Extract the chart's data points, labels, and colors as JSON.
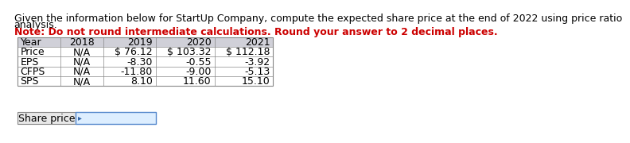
{
  "title_line1": "Given the information below for StartUp Company, compute the expected share price at the end of 2022 using price ratio",
  "title_line2": "analysis.",
  "note": "Note: Do not round intermediate calculations. Round your answer to 2 decimal places.",
  "table_header": [
    "Year",
    "2018",
    "2019",
    "2020",
    "2021"
  ],
  "table_rows": [
    [
      "Price",
      "N/A",
      "$ 76.12",
      "$ 103.32",
      "$ 112.18"
    ],
    [
      "EPS",
      "N/A",
      "-8.30",
      "-0.55",
      "-3.92"
    ],
    [
      "CFPS",
      "N/A",
      "-11.80",
      "-9.00",
      "-5.13"
    ],
    [
      "SPS",
      "N/A",
      "8.10",
      "11.60",
      "15.10"
    ]
  ],
  "input_label": "Share price",
  "bg_color": "#ffffff",
  "header_bg": "#d0d0d8",
  "label_box_bg": "#e8e8e8",
  "input_box_bg": "#ddeeff",
  "input_box_border": "#5588cc",
  "table_border": "#888888",
  "note_color": "#cc0000",
  "text_color": "#000000",
  "title_fontsize": 9.0,
  "note_fontsize": 9.0,
  "table_fontsize": 9.0
}
